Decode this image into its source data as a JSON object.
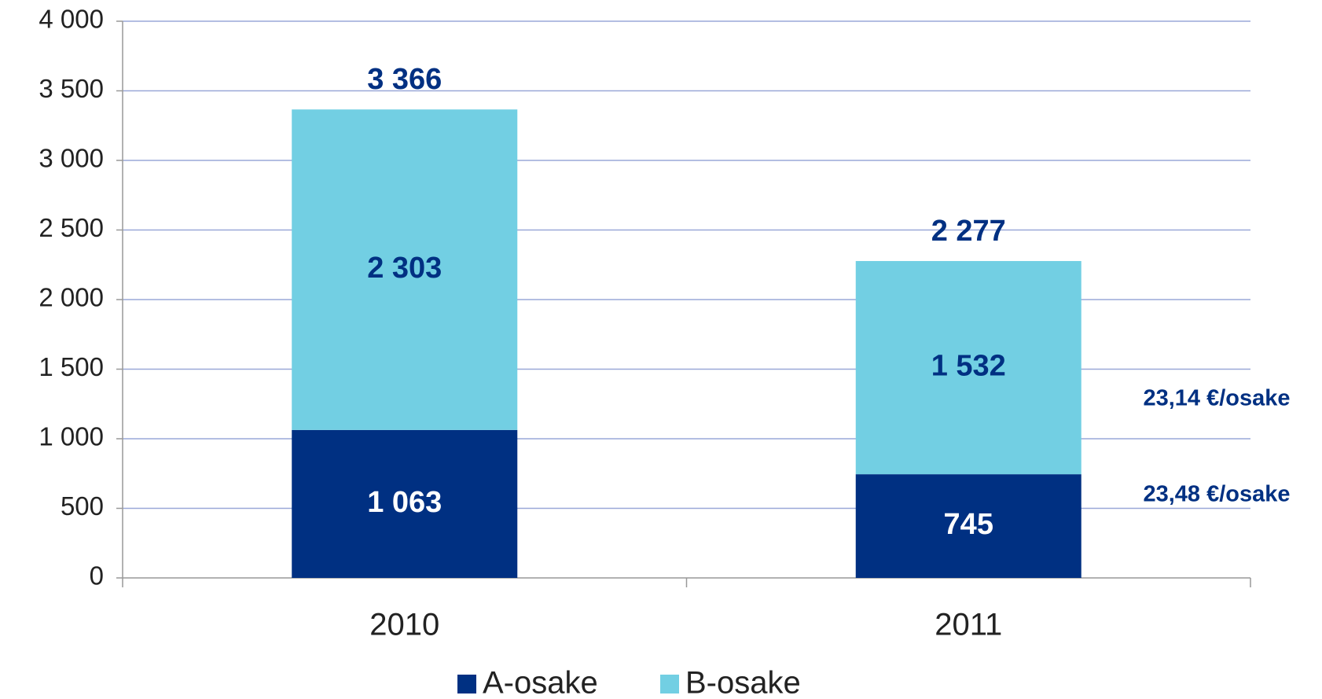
{
  "chart_data": {
    "type": "stacked_bar",
    "categories": [
      "2010",
      "2011"
    ],
    "series": [
      {
        "name": "A-osake",
        "color": "#003082",
        "values": [
          1063,
          745
        ],
        "value_labels": [
          "1 063",
          "745"
        ]
      },
      {
        "name": "B-osake",
        "color": "#72cfe3",
        "values": [
          2303,
          1532
        ],
        "value_labels": [
          "2 303",
          "1 532"
        ]
      }
    ],
    "totals": [
      3366,
      2277
    ],
    "total_labels": [
      "3 366",
      "2 277"
    ],
    "annotations": [
      "23,14 €/osake",
      "23,48 €/osake"
    ],
    "ylim": [
      0,
      4000
    ],
    "yticks": [
      0,
      500,
      {
        "value": 1000,
        "label": "1 000"
      },
      {
        "value": 1500,
        "label": "1 500"
      },
      {
        "value": 2000,
        "label": "2 000"
      },
      {
        "value": 2500,
        "label": "2 500"
      },
      {
        "value": 3000,
        "label": "3 000"
      },
      {
        "value": 3500,
        "label": "3 500"
      },
      {
        "value": 4000,
        "label": "4 000"
      }
    ],
    "grid": true,
    "legend": "bottom"
  }
}
